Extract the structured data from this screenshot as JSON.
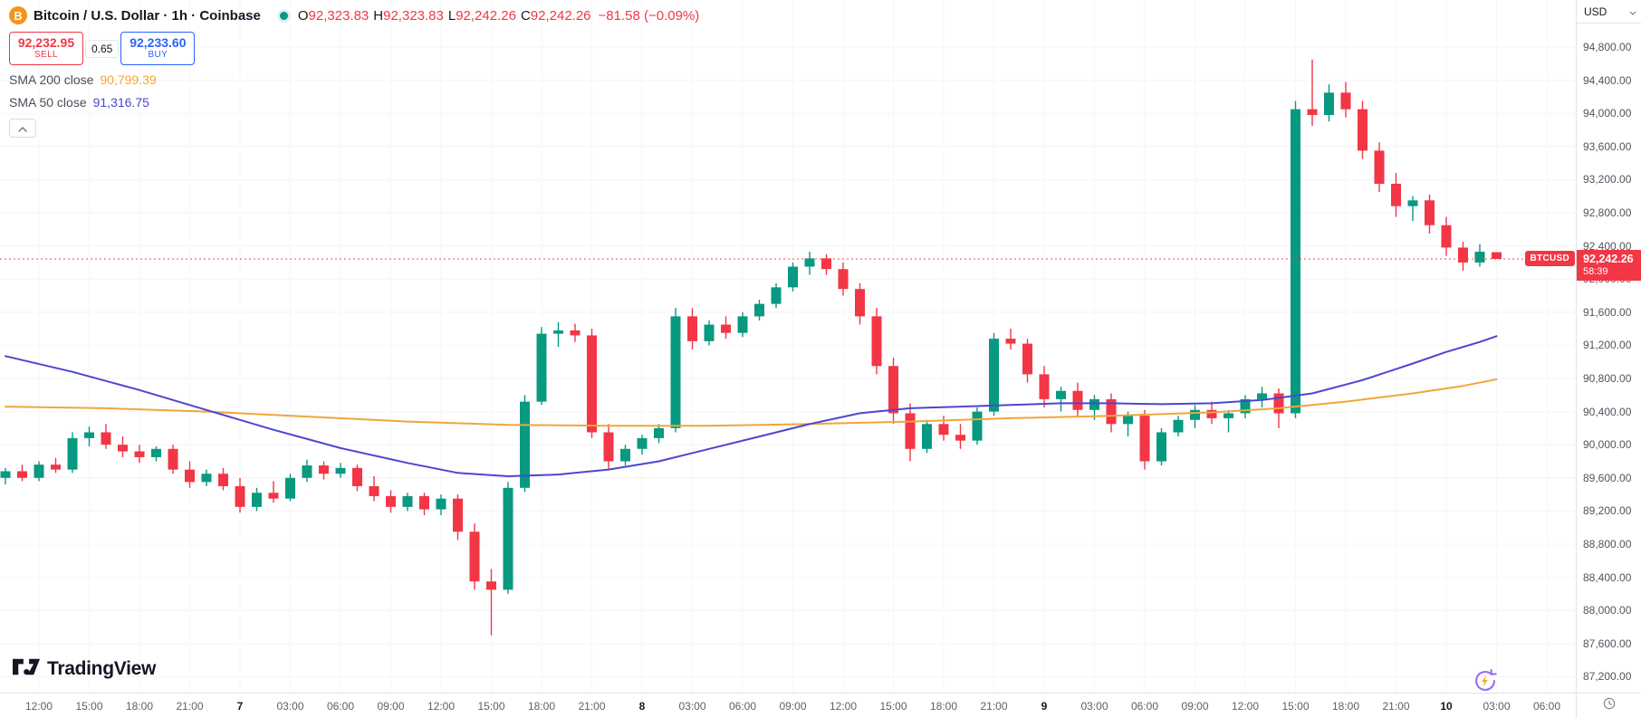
{
  "header": {
    "symbol_title": "Bitcoin / U.S. Dollar · 1h · Coinbase",
    "ohlc": {
      "items": [
        {
          "label": "O",
          "value": "92,323.83"
        },
        {
          "label": "H",
          "value": "92,323.83"
        },
        {
          "label": "L",
          "value": "92,242.26"
        },
        {
          "label": "C",
          "value": "92,242.26"
        }
      ],
      "change": "−81.58 (−0.09%)"
    }
  },
  "trade_panel": {
    "sell_price": "92,232.95",
    "sell_label": "SELL",
    "spread": "0.65",
    "buy_price": "92,233.60",
    "buy_label": "BUY",
    "sell_color": "#f23645",
    "buy_color": "#2962ff"
  },
  "indicators": [
    {
      "name": "SMA 200 close",
      "value": "90,799.39",
      "color": "#f0a63a"
    },
    {
      "name": "SMA 50 close",
      "value": "91,316.75",
      "color": "#4c46cf"
    }
  ],
  "price_axis": {
    "currency": "USD",
    "labels": [
      "94,800.00",
      "94,400.00",
      "94,000.00",
      "93,600.00",
      "93,200.00",
      "92,800.00",
      "92,400.00",
      "92,000.00",
      "91,600.00",
      "91,200.00",
      "90,800.00",
      "90,400.00",
      "90,000.00",
      "89,600.00",
      "89,200.00",
      "88,800.00",
      "88,400.00",
      "88,000.00",
      "87,600.00",
      "87,200.00"
    ],
    "price_badge": {
      "symbol": "BTCUSD",
      "price": "92,242.26",
      "countdown": "58:39"
    }
  },
  "time_axis": {
    "labels": [
      {
        "t": "12:00",
        "i": 2
      },
      {
        "t": "15:00",
        "i": 5
      },
      {
        "t": "18:00",
        "i": 8
      },
      {
        "t": "21:00",
        "i": 11
      },
      {
        "t": "7",
        "i": 14,
        "b": true
      },
      {
        "t": "03:00",
        "i": 17
      },
      {
        "t": "06:00",
        "i": 20
      },
      {
        "t": "09:00",
        "i": 23
      },
      {
        "t": "12:00",
        "i": 26
      },
      {
        "t": "15:00",
        "i": 29
      },
      {
        "t": "18:00",
        "i": 32
      },
      {
        "t": "21:00",
        "i": 35
      },
      {
        "t": "8",
        "i": 38,
        "b": true
      },
      {
        "t": "03:00",
        "i": 41
      },
      {
        "t": "06:00",
        "i": 44
      },
      {
        "t": "09:00",
        "i": 47
      },
      {
        "t": "12:00",
        "i": 50
      },
      {
        "t": "15:00",
        "i": 53
      },
      {
        "t": "18:00",
        "i": 56
      },
      {
        "t": "21:00",
        "i": 59
      },
      {
        "t": "9",
        "i": 62,
        "b": true
      },
      {
        "t": "03:00",
        "i": 65
      },
      {
        "t": "06:00",
        "i": 68
      },
      {
        "t": "09:00",
        "i": 71
      },
      {
        "t": "12:00",
        "i": 74
      },
      {
        "t": "15:00",
        "i": 77
      },
      {
        "t": "18:00",
        "i": 80
      },
      {
        "t": "21:00",
        "i": 83
      },
      {
        "t": "10",
        "i": 86,
        "b": true
      },
      {
        "t": "03:00",
        "i": 89
      },
      {
        "t": "06:00",
        "i": 92
      }
    ]
  },
  "footer": {
    "brand": "TradingView"
  },
  "icons": {
    "bitcoin": "B",
    "collapse": "chevron-up",
    "currency_dropdown": "chevron-down",
    "corner": "clock",
    "boost": "refresh-bolt"
  },
  "chart_data": {
    "type": "bar",
    "subtype": "candlestick-with-sma-overlays",
    "title": "Bitcoin / U.S. Dollar, 1h, Coinbase",
    "interval": "1h",
    "ylabel": "USD",
    "ylim": [
      87000,
      95370
    ],
    "price_grid_step": 400,
    "current_price": 92242.26,
    "up_color": "#089981",
    "down_color": "#f23645",
    "grid": "faint",
    "legend_position": "top-left",
    "candles": [
      [
        89600,
        89720,
        89520,
        89680
      ],
      [
        89680,
        89760,
        89560,
        89600
      ],
      [
        89600,
        89800,
        89560,
        89760
      ],
      [
        89760,
        89840,
        89660,
        89700
      ],
      [
        89700,
        90150,
        89660,
        90080
      ],
      [
        90080,
        90220,
        89980,
        90150
      ],
      [
        90150,
        90250,
        89950,
        90000
      ],
      [
        90000,
        90100,
        89850,
        89920
      ],
      [
        89920,
        90000,
        89780,
        89850
      ],
      [
        89850,
        89980,
        89800,
        89950
      ],
      [
        89950,
        90000,
        89650,
        89700
      ],
      [
        89700,
        89800,
        89480,
        89550
      ],
      [
        89550,
        89700,
        89500,
        89650
      ],
      [
        89650,
        89720,
        89450,
        89500
      ],
      [
        89500,
        89600,
        89180,
        89250
      ],
      [
        89250,
        89480,
        89200,
        89420
      ],
      [
        89420,
        89560,
        89300,
        89350
      ],
      [
        89350,
        89650,
        89320,
        89600
      ],
      [
        89600,
        89820,
        89550,
        89750
      ],
      [
        89750,
        89800,
        89580,
        89650
      ],
      [
        89650,
        89780,
        89600,
        89720
      ],
      [
        89720,
        89760,
        89440,
        89500
      ],
      [
        89500,
        89620,
        89320,
        89380
      ],
      [
        89380,
        89450,
        89180,
        89250
      ],
      [
        89250,
        89420,
        89200,
        89380
      ],
      [
        89380,
        89420,
        89150,
        89220
      ],
      [
        89220,
        89400,
        89150,
        89350
      ],
      [
        89350,
        89400,
        88850,
        88950
      ],
      [
        88950,
        89050,
        88250,
        88350
      ],
      [
        88350,
        88500,
        87700,
        88250
      ],
      [
        88250,
        89550,
        88200,
        89480
      ],
      [
        89480,
        90600,
        89430,
        90520
      ],
      [
        90520,
        91420,
        90480,
        91340
      ],
      [
        91340,
        91480,
        91180,
        91380
      ],
      [
        91380,
        91460,
        91240,
        91320
      ],
      [
        91320,
        91400,
        90080,
        90150
      ],
      [
        90150,
        90250,
        89700,
        89800
      ],
      [
        89800,
        90000,
        89750,
        89950
      ],
      [
        89950,
        90120,
        89880,
        90080
      ],
      [
        90080,
        90250,
        90020,
        90200
      ],
      [
        90200,
        91650,
        90150,
        91550
      ],
      [
        91550,
        91650,
        91150,
        91250
      ],
      [
        91250,
        91500,
        91200,
        91450
      ],
      [
        91450,
        91550,
        91280,
        91350
      ],
      [
        91350,
        91600,
        91300,
        91550
      ],
      [
        91550,
        91750,
        91500,
        91700
      ],
      [
        91700,
        91950,
        91650,
        91900
      ],
      [
        91900,
        92200,
        91850,
        92150
      ],
      [
        92150,
        92330,
        92050,
        92250
      ],
      [
        92250,
        92300,
        92050,
        92120
      ],
      [
        92120,
        92200,
        91800,
        91880
      ],
      [
        91880,
        91950,
        91450,
        91550
      ],
      [
        91550,
        91650,
        90850,
        90950
      ],
      [
        90950,
        91050,
        90250,
        90380
      ],
      [
        90380,
        90500,
        89800,
        89950
      ],
      [
        89950,
        90300,
        89900,
        90250
      ],
      [
        90250,
        90350,
        90050,
        90120
      ],
      [
        90120,
        90250,
        89950,
        90050
      ],
      [
        90050,
        90450,
        90000,
        90400
      ],
      [
        90400,
        91350,
        90350,
        91280
      ],
      [
        91280,
        91400,
        91150,
        91220
      ],
      [
        91220,
        91280,
        90750,
        90850
      ],
      [
        90850,
        90950,
        90450,
        90550
      ],
      [
        90550,
        90700,
        90400,
        90650
      ],
      [
        90650,
        90750,
        90350,
        90420
      ],
      [
        90420,
        90600,
        90300,
        90550
      ],
      [
        90550,
        90620,
        90150,
        90250
      ],
      [
        90250,
        90400,
        90100,
        90350
      ],
      [
        90350,
        90420,
        89700,
        89800
      ],
      [
        89800,
        90200,
        89750,
        90150
      ],
      [
        90150,
        90350,
        90100,
        90300
      ],
      [
        90300,
        90480,
        90200,
        90420
      ],
      [
        90420,
        90520,
        90250,
        90320
      ],
      [
        90320,
        90420,
        90150,
        90380
      ],
      [
        90380,
        90600,
        90320,
        90550
      ],
      [
        90550,
        90700,
        90450,
        90620
      ],
      [
        90620,
        90680,
        90200,
        90380
      ],
      [
        90380,
        94150,
        90320,
        94050
      ],
      [
        94050,
        94650,
        93850,
        93980
      ],
      [
        93980,
        94350,
        93900,
        94250
      ],
      [
        94250,
        94380,
        93950,
        94050
      ],
      [
        94050,
        94150,
        93450,
        93550
      ],
      [
        93550,
        93650,
        93050,
        93150
      ],
      [
        93150,
        93280,
        92750,
        92880
      ],
      [
        92880,
        93000,
        92700,
        92950
      ],
      [
        92950,
        93020,
        92550,
        92650
      ],
      [
        92650,
        92750,
        92280,
        92380
      ],
      [
        92380,
        92450,
        92100,
        92200
      ],
      [
        92200,
        92420,
        92150,
        92330
      ],
      [
        92323.83,
        92323.83,
        92242.26,
        92242.26
      ]
    ],
    "series": [
      {
        "name": "SMA 200",
        "color": "#f0a63a",
        "points": [
          [
            0,
            90460
          ],
          [
            6,
            90440
          ],
          [
            12,
            90400
          ],
          [
            18,
            90340
          ],
          [
            24,
            90280
          ],
          [
            30,
            90240
          ],
          [
            36,
            90230
          ],
          [
            42,
            90230
          ],
          [
            48,
            90250
          ],
          [
            54,
            90280
          ],
          [
            60,
            90320
          ],
          [
            66,
            90350
          ],
          [
            72,
            90390
          ],
          [
            76,
            90440
          ],
          [
            80,
            90520
          ],
          [
            84,
            90620
          ],
          [
            87,
            90710
          ],
          [
            89,
            90790
          ]
        ]
      },
      {
        "name": "SMA 50",
        "color": "#4c46cf",
        "points": [
          [
            0,
            91070
          ],
          [
            4,
            90880
          ],
          [
            8,
            90660
          ],
          [
            12,
            90420
          ],
          [
            16,
            90180
          ],
          [
            20,
            89960
          ],
          [
            24,
            89780
          ],
          [
            27,
            89660
          ],
          [
            30,
            89620
          ],
          [
            33,
            89640
          ],
          [
            36,
            89700
          ],
          [
            39,
            89800
          ],
          [
            42,
            89950
          ],
          [
            45,
            90100
          ],
          [
            48,
            90250
          ],
          [
            51,
            90380
          ],
          [
            54,
            90440
          ],
          [
            57,
            90460
          ],
          [
            60,
            90480
          ],
          [
            63,
            90500
          ],
          [
            66,
            90500
          ],
          [
            69,
            90490
          ],
          [
            72,
            90500
          ],
          [
            75,
            90540
          ],
          [
            78,
            90620
          ],
          [
            81,
            90780
          ],
          [
            84,
            90980
          ],
          [
            86,
            91120
          ],
          [
            88,
            91240
          ],
          [
            89,
            91310
          ]
        ]
      }
    ]
  }
}
